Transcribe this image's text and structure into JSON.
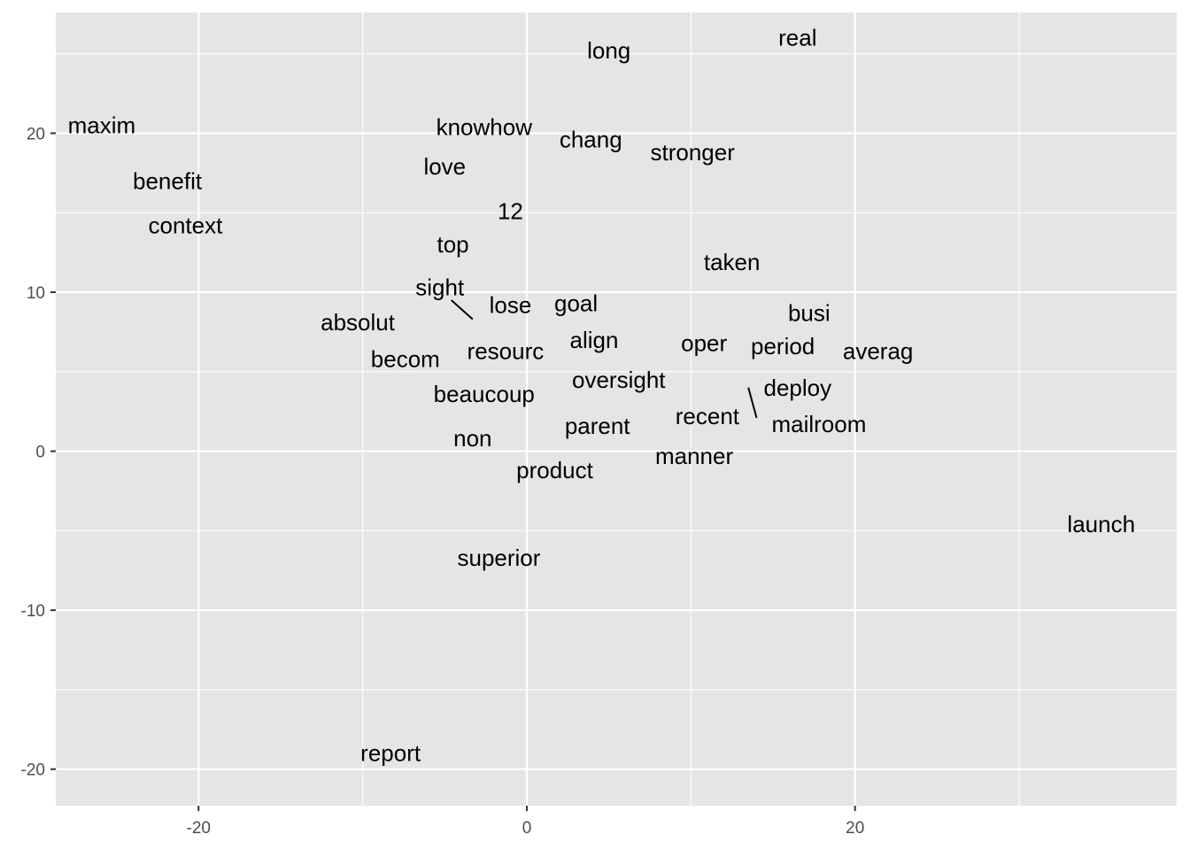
{
  "chart_data": {
    "type": "scatter",
    "title": "",
    "xlabel": "",
    "ylabel": "",
    "xlim": [
      -28.7,
      39.6
    ],
    "ylim": [
      -22.3,
      27.6
    ],
    "x_ticks": [
      -20,
      0,
      20
    ],
    "y_ticks": [
      -20,
      -10,
      0,
      10,
      20
    ],
    "x_tick_labels": [
      "-20",
      "0",
      "20"
    ],
    "y_tick_labels": [
      "-20",
      "-10",
      "0",
      "10",
      "20"
    ],
    "grid": true,
    "background_color": "#e5e5e5",
    "grid_color": "#ffffff",
    "text_color": "#000000",
    "tick_label_color": "#4d4d4d",
    "points": [
      {
        "label": "real",
        "x": 16.5,
        "y": 26.0
      },
      {
        "label": "long",
        "x": 5.0,
        "y": 25.2
      },
      {
        "label": "maxim",
        "x": -25.9,
        "y": 20.5
      },
      {
        "label": "knowhow",
        "x": -2.6,
        "y": 20.4
      },
      {
        "label": "chang",
        "x": 3.9,
        "y": 19.6
      },
      {
        "label": "stronger",
        "x": 10.1,
        "y": 18.8
      },
      {
        "label": "love",
        "x": -5.0,
        "y": 17.9
      },
      {
        "label": "benefit",
        "x": -21.9,
        "y": 17.0
      },
      {
        "label": "12",
        "x": -1.0,
        "y": 15.1
      },
      {
        "label": "context",
        "x": -20.8,
        "y": 14.2
      },
      {
        "label": "top",
        "x": -4.5,
        "y": 13.0
      },
      {
        "label": "taken",
        "x": 12.5,
        "y": 11.9
      },
      {
        "label": "sight",
        "x": -5.3,
        "y": 10.3
      },
      {
        "label": "lose",
        "x": -1.0,
        "y": 9.2
      },
      {
        "label": "goal",
        "x": 3.0,
        "y": 9.3
      },
      {
        "label": "busi",
        "x": 17.2,
        "y": 8.7
      },
      {
        "label": "absolut",
        "x": -10.3,
        "y": 8.1
      },
      {
        "label": "align",
        "x": 4.1,
        "y": 7.0
      },
      {
        "label": "oper",
        "x": 10.8,
        "y": 6.8
      },
      {
        "label": "period",
        "x": 15.6,
        "y": 6.6
      },
      {
        "label": "resourc",
        "x": -1.3,
        "y": 6.3
      },
      {
        "label": "averag",
        "x": 21.4,
        "y": 6.3
      },
      {
        "label": "becom",
        "x": -7.4,
        "y": 5.8
      },
      {
        "label": "oversight",
        "x": 5.6,
        "y": 4.5
      },
      {
        "label": "deploy",
        "x": 16.5,
        "y": 4.0
      },
      {
        "label": "beaucoup",
        "x": -2.6,
        "y": 3.6
      },
      {
        "label": "recent",
        "x": 11.0,
        "y": 2.2
      },
      {
        "label": "mailroom",
        "x": 17.8,
        "y": 1.7
      },
      {
        "label": "parent",
        "x": 4.3,
        "y": 1.6
      },
      {
        "label": "non",
        "x": -3.3,
        "y": 0.8
      },
      {
        "label": "manner",
        "x": 10.2,
        "y": -0.3
      },
      {
        "label": "product",
        "x": 1.7,
        "y": -1.2
      },
      {
        "label": "launch",
        "x": 35.0,
        "y": -4.6
      },
      {
        "label": "superior",
        "x": -1.7,
        "y": -6.7
      },
      {
        "label": "report",
        "x": -8.3,
        "y": -19.0
      }
    ],
    "leader_lines": [
      {
        "label": "sight",
        "from": [
          -4.6,
          9.5
        ],
        "to": [
          -3.3,
          8.3
        ]
      },
      {
        "label": "mailroom",
        "from": [
          13.5,
          4.0
        ],
        "to": [
          14.0,
          2.1
        ]
      }
    ]
  }
}
